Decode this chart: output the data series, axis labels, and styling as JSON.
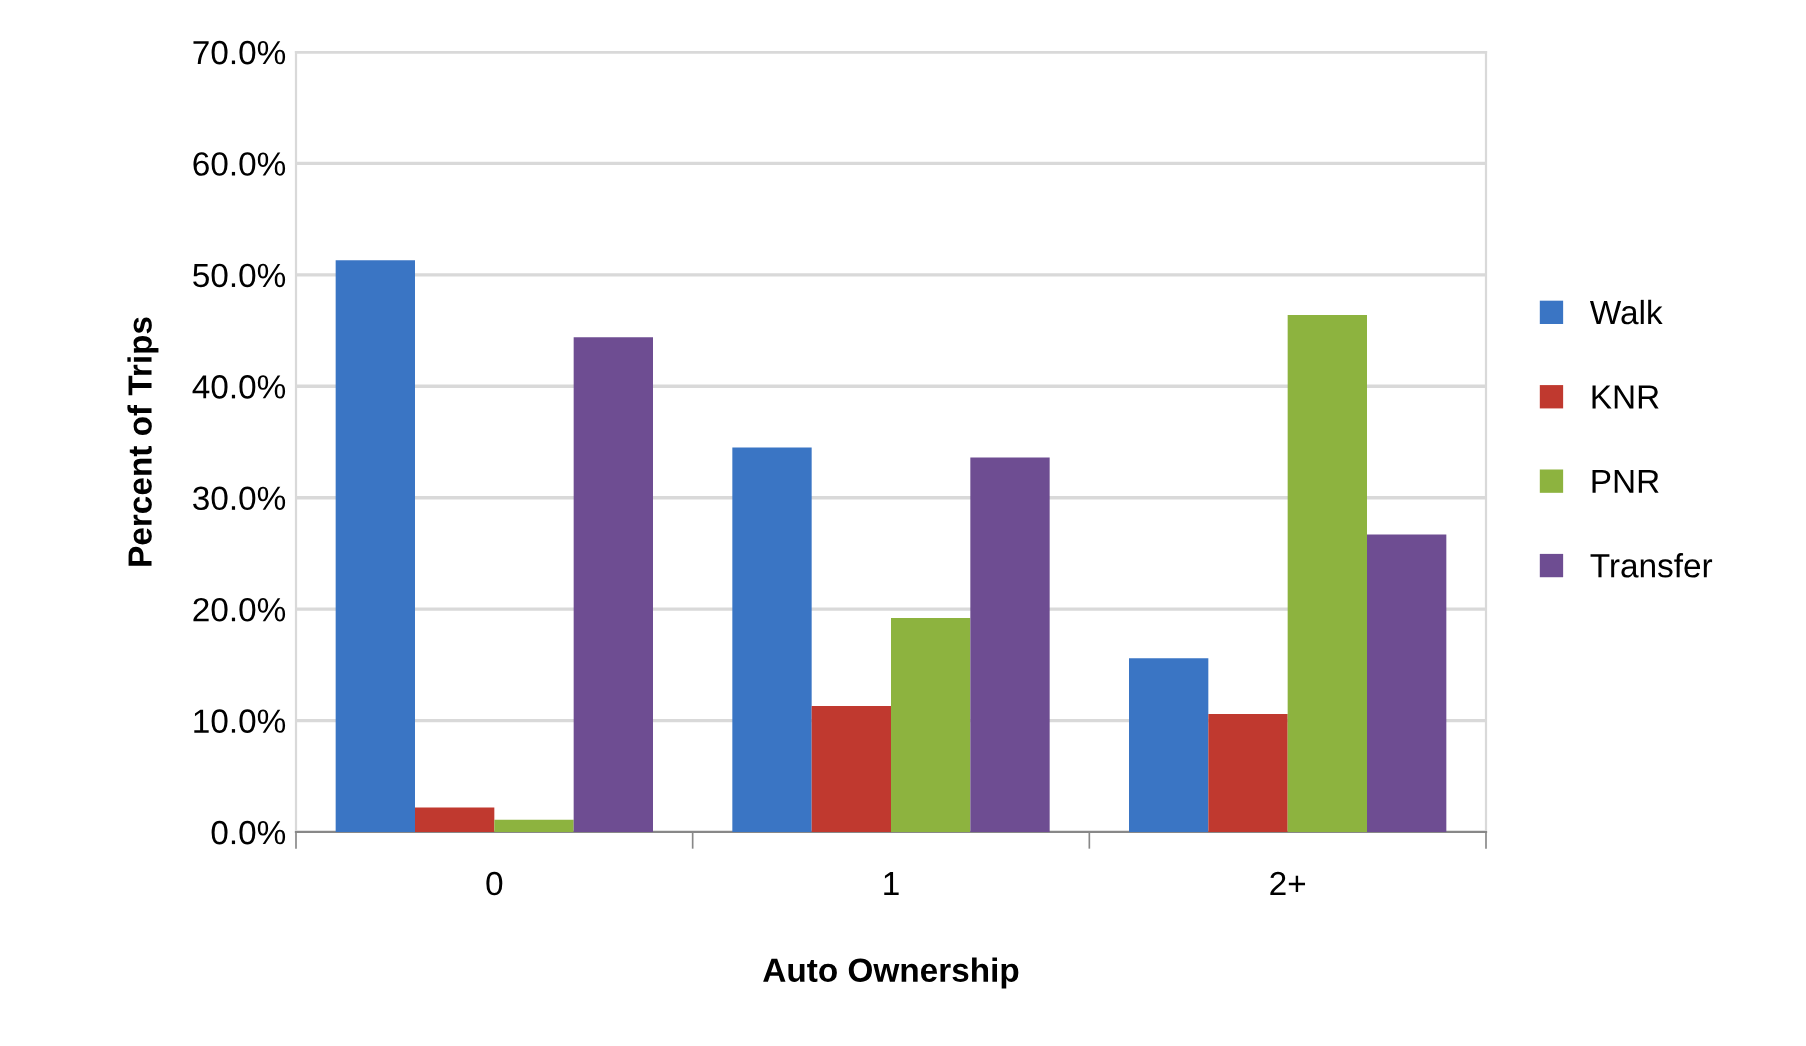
{
  "chart_data": {
    "type": "bar",
    "xlabel": "Auto Ownership",
    "ylabel": "Percent of Trips",
    "categories": [
      "0",
      "1",
      "2+"
    ],
    "series": [
      {
        "name": "Walk",
        "color": "#3a75c4",
        "values": [
          51.3,
          34.5,
          15.6
        ]
      },
      {
        "name": "KNR",
        "color": "#c0392f",
        "values": [
          2.2,
          11.3,
          10.6
        ]
      },
      {
        "name": "PNR",
        "color": "#8db33f",
        "values": [
          1.1,
          19.2,
          46.4
        ]
      },
      {
        "name": "Transfer",
        "color": "#6e4d92",
        "values": [
          44.4,
          33.6,
          26.7
        ]
      }
    ],
    "ylim": [
      0,
      70
    ],
    "yticks": [
      {
        "value": 0,
        "label": "0.0%"
      },
      {
        "value": 10,
        "label": "10.0%"
      },
      {
        "value": 20,
        "label": "20.0%"
      },
      {
        "value": 30,
        "label": "30.0%"
      },
      {
        "value": 40,
        "label": "40.0%"
      },
      {
        "value": 50,
        "label": "50.0%"
      },
      {
        "value": 60,
        "label": "60.0%"
      },
      {
        "value": 70,
        "label": "70.0%"
      }
    ],
    "grid": "y",
    "legend": "right"
  }
}
